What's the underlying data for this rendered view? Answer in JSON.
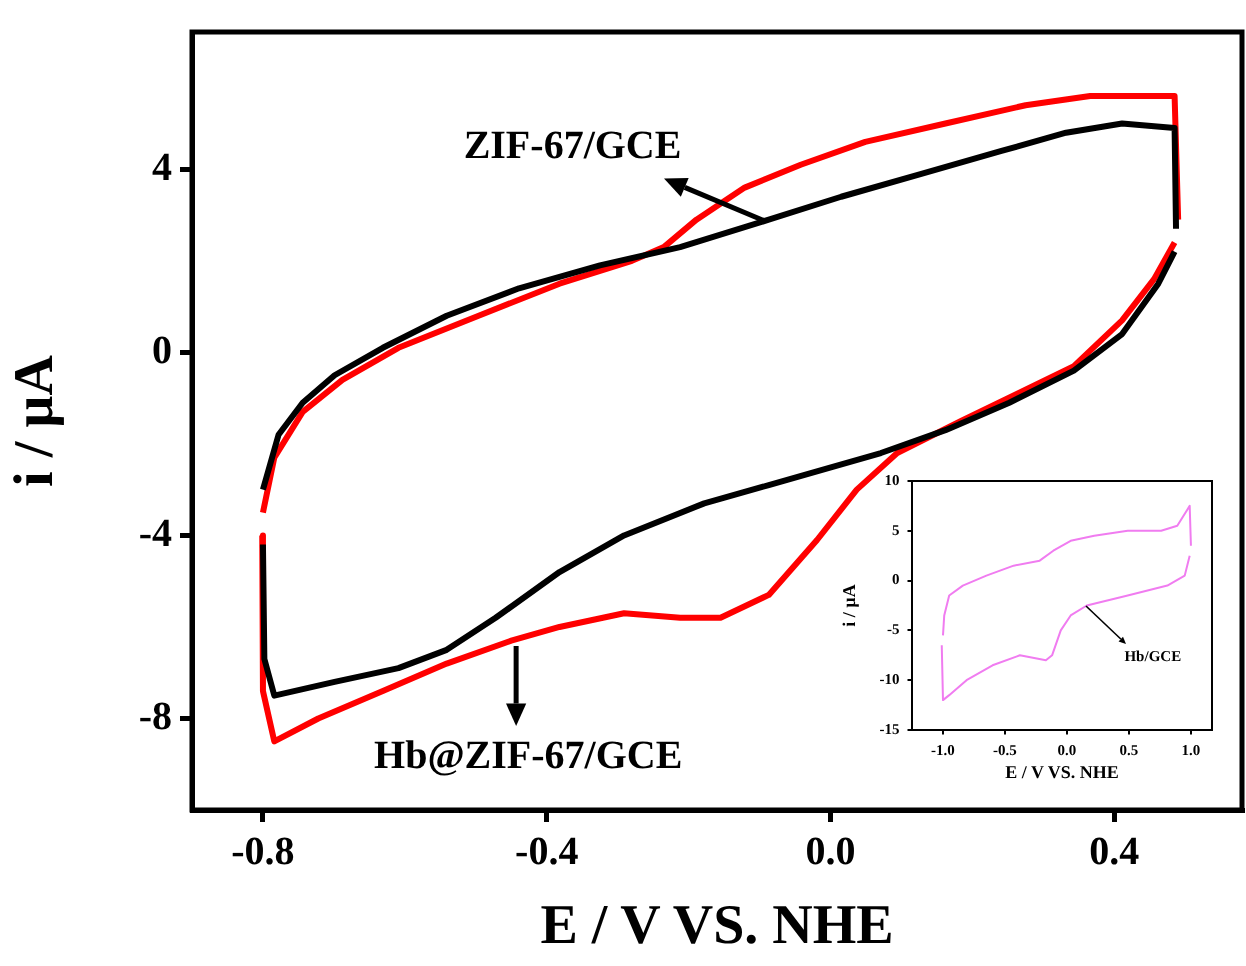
{
  "chart_data": [
    {
      "type": "line",
      "xlabel": "E / V VS. NHE",
      "ylabel": "i / µA",
      "xlim": [
        -0.9,
        0.58
      ],
      "ylim": [
        -10,
        7
      ],
      "xticks": [
        -0.8,
        -0.4,
        {
          "value": 0,
          "label": "0.0"
        },
        0.4
      ],
      "yticks": [
        -8,
        -4,
        0,
        4
      ],
      "grid": false,
      "legend": false,
      "marker": "none",
      "line_style": "solid",
      "series": [
        {
          "color": "#000000",
          "x": [
            -0.8,
            -0.778,
            -0.744,
            -0.699,
            -0.631,
            -0.541,
            -0.439,
            -0.325,
            -0.212,
            -0.087,
            0.015,
            0.128,
            0.241,
            0.332,
            0.411,
            0.485,
            0.487
          ],
          "values": [
            -3.0,
            -1.8,
            -1.1,
            -0.5,
            0.1,
            0.8,
            1.4,
            1.9,
            2.3,
            2.9,
            3.4,
            3.9,
            4.4,
            4.8,
            5.0,
            4.9,
            2.7
          ]
        },
        {
          "color": "#000000",
          "x": [
            -0.8,
            -0.798,
            -0.784,
            -0.699,
            -0.609,
            -0.541,
            -0.472,
            -0.382,
            -0.291,
            -0.178,
            -0.087,
            0.003,
            0.071,
            0.162,
            0.252,
            0.343,
            0.411,
            0.462,
            0.485
          ],
          "values": [
            -4.2,
            -6.7,
            -7.5,
            -7.2,
            -6.9,
            -6.5,
            -5.8,
            -4.8,
            -4.0,
            -3.3,
            -2.9,
            -2.5,
            -2.2,
            -1.7,
            -1.1,
            -0.4,
            0.4,
            1.5,
            2.2
          ]
        },
        {
          "color": "#ff0000",
          "x": [
            -0.8,
            -0.784,
            -0.744,
            -0.688,
            -0.609,
            -0.496,
            -0.382,
            -0.28,
            -0.235,
            -0.189,
            -0.121,
            -0.042,
            0.049,
            0.162,
            0.275,
            0.366,
            0.485,
            0.49
          ],
          "values": [
            -3.5,
            -2.3,
            -1.3,
            -0.6,
            0.1,
            0.8,
            1.5,
            2.0,
            2.3,
            2.9,
            3.6,
            4.1,
            4.6,
            5.0,
            5.4,
            5.6,
            5.6,
            2.9
          ]
        },
        {
          "color": "#ff0000",
          "x": [
            -0.801,
            -0.8,
            -0.784,
            -0.722,
            -0.631,
            -0.541,
            -0.45,
            -0.382,
            -0.291,
            -0.212,
            -0.155,
            -0.087,
            -0.019,
            0.037,
            0.094,
            0.184,
            0.264,
            0.343,
            0.411,
            0.456,
            0.485
          ],
          "values": [
            -4.0,
            -7.4,
            -8.5,
            -8.0,
            -7.4,
            -6.8,
            -6.3,
            -6.0,
            -5.7,
            -5.8,
            -5.8,
            -5.3,
            -4.1,
            -3.0,
            -2.2,
            -1.5,
            -0.9,
            -0.3,
            0.7,
            1.6,
            2.4
          ]
        }
      ],
      "annotations": [
        {
          "text": "ZIF-67/GCE",
          "x": -0.093,
          "y": 2.9
        },
        {
          "text": "Hb@ZIF-67/GCE",
          "x": -0.443,
          "y": -6.4
        }
      ]
    },
    {
      "type": "line",
      "xlabel": "E / V VS. NHE",
      "ylabel": "i / µA",
      "xlim": [
        -1.25,
        1.17
      ],
      "ylim": [
        -15,
        10
      ],
      "xticks": [
        {
          "value": -1,
          "label": "-1.0"
        },
        -0.5,
        {
          "value": 0,
          "label": "0.0"
        },
        0.5,
        {
          "value": 1,
          "label": "1.0"
        }
      ],
      "yticks": [
        -15,
        -10,
        -5,
        0,
        5,
        10
      ],
      "grid": false,
      "legend": false,
      "marker": "none",
      "line_style": "solid",
      "series": [
        {
          "color": "#f07cf0",
          "x": [
            -1.0,
            -0.99,
            -0.95,
            -0.84,
            -0.65,
            -0.43,
            -0.22,
            -0.11,
            0.03,
            0.22,
            0.49,
            0.76,
            0.89,
            0.99,
            1.0
          ],
          "values": [
            -5.5,
            -3.5,
            -1.5,
            -0.5,
            0.5,
            1.5,
            2.0,
            3.0,
            4.0,
            4.5,
            5.0,
            5.0,
            5.5,
            7.5,
            3.5
          ]
        },
        {
          "color": "#f07cf0",
          "x": [
            -1.01,
            -1.0,
            -0.95,
            -0.81,
            -0.6,
            -0.38,
            -0.17,
            -0.12,
            -0.05,
            0.03,
            0.16,
            0.49,
            0.81,
            0.95,
            0.99
          ],
          "values": [
            -6.5,
            -12.0,
            -11.5,
            -10.0,
            -8.5,
            -7.5,
            -8.0,
            -7.5,
            -5.0,
            -3.5,
            -2.5,
            -1.5,
            -0.5,
            0.5,
            2.5
          ]
        }
      ],
      "annotations": [
        {
          "text": "Hb/GCE",
          "x": 0.16,
          "y": -2.5
        }
      ]
    }
  ]
}
